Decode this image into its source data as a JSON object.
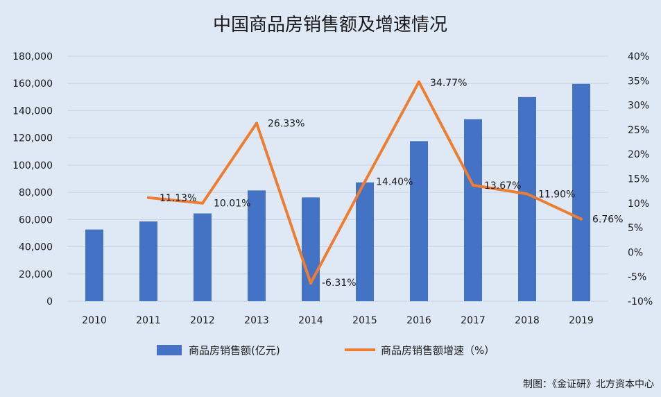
{
  "chart_data": {
    "type": "bar",
    "title": "中国商品房销售额及增速情况",
    "categories": [
      "2010",
      "2011",
      "2012",
      "2013",
      "2014",
      "2015",
      "2016",
      "2017",
      "2018",
      "2019"
    ],
    "series": [
      {
        "name": "商品房销售额(亿元)",
        "type": "bar",
        "axis": "left",
        "color": "#4472c4",
        "values": [
          52700,
          58600,
          64500,
          81400,
          76300,
          87300,
          117600,
          133700,
          150000,
          159700
        ]
      },
      {
        "name": "商品房销售额增速（%）",
        "type": "line",
        "axis": "right",
        "color": "#ed7d31",
        "values": [
          null,
          11.13,
          10.01,
          26.33,
          -6.31,
          14.4,
          34.77,
          13.67,
          11.9,
          6.76
        ],
        "labels": [
          "",
          "11.13%",
          "10.01%",
          "26.33%",
          "-6.31%",
          "14.40%",
          "34.77%",
          "13.67%",
          "11.90%",
          "6.76%"
        ]
      }
    ],
    "y_left": {
      "range": [
        0,
        180000
      ],
      "ticks": [
        0,
        20000,
        40000,
        60000,
        80000,
        100000,
        120000,
        140000,
        160000,
        180000
      ],
      "tick_labels": [
        "0",
        "20,000",
        "40,000",
        "60,000",
        "80,000",
        "100,000",
        "120,000",
        "140,000",
        "160,000",
        "180,000"
      ]
    },
    "y_right": {
      "range": [
        -10,
        40
      ],
      "ticks": [
        -10,
        -5,
        0,
        5,
        10,
        15,
        20,
        25,
        30,
        35,
        40
      ],
      "tick_labels": [
        "-10%",
        "-5%",
        "0%",
        "5%",
        "10%",
        "15%",
        "20%",
        "25%",
        "30%",
        "35%",
        "40%"
      ]
    },
    "grid": true,
    "legend": "bottom",
    "credit": "制图：《金证研》北方资本中心"
  }
}
